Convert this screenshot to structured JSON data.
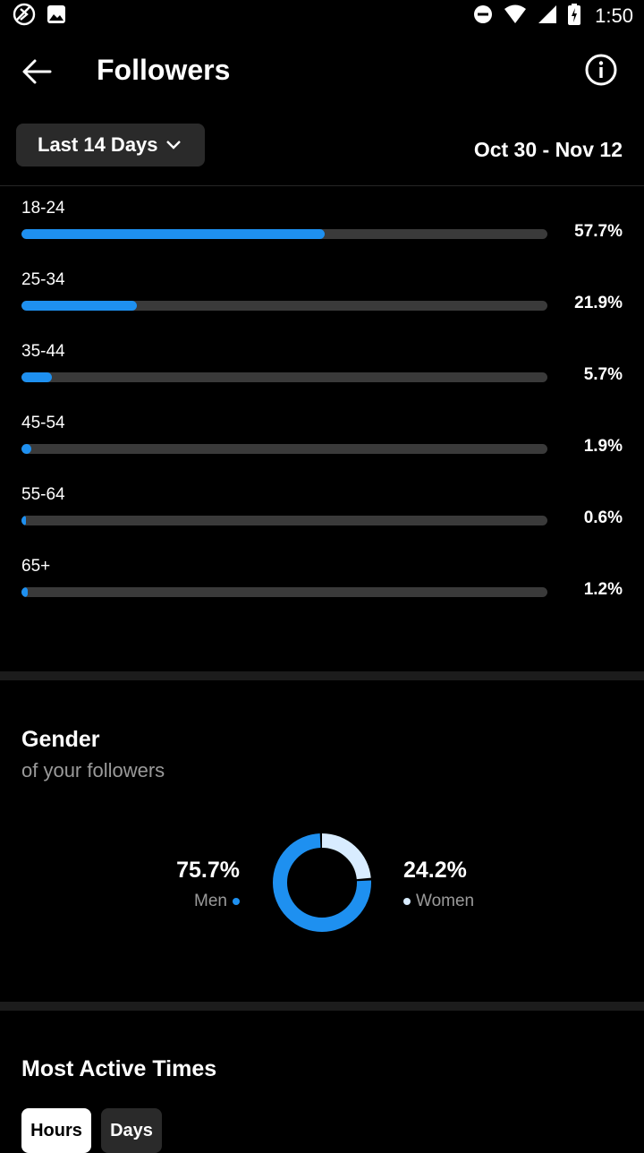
{
  "status_bar": {
    "time": "1:50",
    "icons": [
      "sync-icon",
      "image-icon",
      "do-not-disturb-icon",
      "wifi-icon",
      "signal-icon",
      "battery-charging-icon"
    ]
  },
  "header": {
    "title": "Followers",
    "back_icon": "arrow-left-icon",
    "info_icon": "info-icon"
  },
  "filter": {
    "range_label": "Last 14 Days",
    "date_range": "Oct 30 - Nov 12"
  },
  "age_ranges": [
    {
      "label": "18-24",
      "percent_text": "57.7%",
      "value": 57.7
    },
    {
      "label": "25-34",
      "percent_text": "21.9%",
      "value": 21.9
    },
    {
      "label": "35-44",
      "percent_text": "5.7%",
      "value": 5.7
    },
    {
      "label": "45-54",
      "percent_text": "1.9%",
      "value": 1.9
    },
    {
      "label": "55-64",
      "percent_text": "0.6%",
      "value": 0.6
    },
    {
      "label": "65+",
      "percent_text": "1.2%",
      "value": 1.2
    }
  ],
  "gender": {
    "title": "Gender",
    "subtitle": "of your followers",
    "men": {
      "percent_text": "75.7%",
      "label": "Men",
      "value": 75.7,
      "color": "#1e90f0"
    },
    "women": {
      "percent_text": "24.2%",
      "label": "Women",
      "value": 24.2,
      "color": "#d8ecff"
    }
  },
  "most_active": {
    "title": "Most Active Times",
    "tabs": [
      {
        "label": "Hours",
        "selected": true
      },
      {
        "label": "Days",
        "selected": false
      }
    ]
  },
  "colors": {
    "accent": "#1e90f0",
    "track": "#3a3a3a",
    "background": "#000000"
  }
}
